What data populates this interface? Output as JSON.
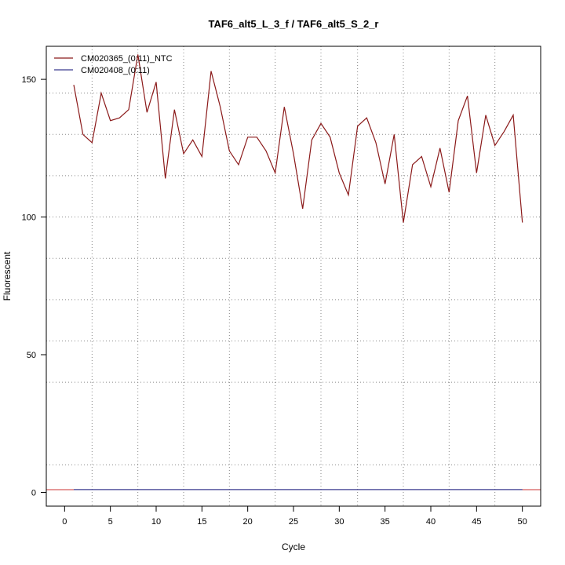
{
  "chart_data": {
    "type": "line",
    "title": "TAF6_alt5_L_3_f / TAF6_alt5_S_2_r",
    "xlabel": "Cycle",
    "ylabel": "Fluorescent",
    "xlim": [
      -2,
      52
    ],
    "ylim": [
      -5,
      162
    ],
    "x_ticks": [
      0,
      5,
      10,
      15,
      20,
      25,
      30,
      35,
      40,
      45,
      50
    ],
    "y_ticks": [
      0,
      50,
      100,
      150
    ],
    "v_grid": [
      3,
      8,
      13,
      18,
      23,
      28,
      32,
      37,
      42,
      47
    ],
    "h_grid": [
      10,
      40,
      55,
      70,
      85,
      100,
      115,
      130,
      145
    ],
    "grid": true,
    "legend_position": "top-left",
    "series": [
      {
        "name": "CM020365_(0:11)_NTC",
        "color": "#8b1a1a",
        "x": [
          1,
          2,
          3,
          4,
          5,
          6,
          7,
          8,
          9,
          10,
          11,
          12,
          13,
          14,
          15,
          16,
          17,
          18,
          19,
          20,
          21,
          22,
          23,
          24,
          25,
          26,
          27,
          28,
          29,
          30,
          31,
          32,
          33,
          34,
          35,
          36,
          37,
          38,
          39,
          40,
          41,
          42,
          43,
          44,
          45,
          46,
          47,
          48,
          49,
          50
        ],
        "y": [
          148,
          130,
          127,
          145,
          135,
          136,
          139,
          159,
          138,
          149,
          114,
          139,
          123,
          128,
          122,
          153,
          140,
          124,
          119,
          129,
          129,
          124,
          116,
          140,
          123,
          103,
          128,
          134,
          129,
          116,
          108,
          133,
          136,
          127,
          112,
          130,
          98,
          119,
          122,
          111,
          125,
          109,
          135,
          144,
          116,
          137,
          126,
          131,
          137,
          98
        ]
      },
      {
        "name": "CM020408_(0:11)",
        "color": "#3b3b8f",
        "x": [
          1,
          50
        ],
        "y": [
          1,
          1
        ]
      }
    ],
    "baseline": {
      "value": 1,
      "color": "#cc3333"
    }
  }
}
